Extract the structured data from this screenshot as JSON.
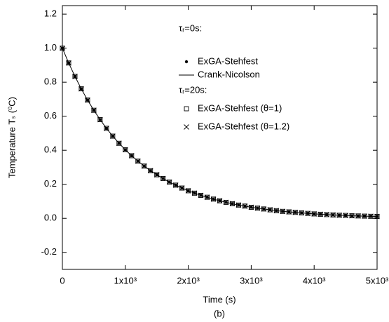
{
  "chart_data": {
    "type": "line",
    "x_label": "Time (s)",
    "y_label": "Temperature Tₛ (⁰C)",
    "caption": "(b)",
    "legend_titles": [
      "τᵣ=0s:",
      "τᵣ=20s:"
    ],
    "x": [
      0,
      100,
      200,
      300,
      400,
      500,
      600,
      700,
      800,
      900,
      1000,
      1100,
      1200,
      1300,
      1400,
      1500,
      1600,
      1700,
      1800,
      1900,
      2000,
      2100,
      2200,
      2300,
      2400,
      2500,
      2600,
      2700,
      2800,
      2900,
      3000,
      3100,
      3200,
      3300,
      3400,
      3500,
      3600,
      3700,
      3800,
      3900,
      4000,
      4100,
      4200,
      4300,
      4400,
      4500,
      4600,
      4700,
      4800,
      4900,
      5000
    ],
    "series": [
      {
        "name": "ExGA-Stehfest",
        "marker": "dot",
        "color": "#000000",
        "values": [
          1.0,
          0.913,
          0.834,
          0.761,
          0.695,
          0.635,
          0.58,
          0.529,
          0.483,
          0.441,
          0.403,
          0.368,
          0.336,
          0.307,
          0.28,
          0.256,
          0.234,
          0.213,
          0.195,
          0.178,
          0.162,
          0.148,
          0.135,
          0.124,
          0.113,
          0.103,
          0.094,
          0.086,
          0.078,
          0.072,
          0.065,
          0.06,
          0.055,
          0.05,
          0.045,
          0.041,
          0.038,
          0.035,
          0.032,
          0.029,
          0.026,
          0.024,
          0.022,
          0.02,
          0.018,
          0.017,
          0.015,
          0.014,
          0.013,
          0.012,
          0.011
        ]
      },
      {
        "name": "Crank-Nicolson",
        "marker": "line",
        "color": "#000000",
        "values": [
          1.0,
          0.913,
          0.834,
          0.761,
          0.695,
          0.635,
          0.58,
          0.529,
          0.483,
          0.441,
          0.403,
          0.368,
          0.336,
          0.307,
          0.28,
          0.256,
          0.234,
          0.213,
          0.195,
          0.178,
          0.162,
          0.148,
          0.135,
          0.124,
          0.113,
          0.103,
          0.094,
          0.086,
          0.078,
          0.072,
          0.065,
          0.06,
          0.055,
          0.05,
          0.045,
          0.041,
          0.038,
          0.035,
          0.032,
          0.029,
          0.026,
          0.024,
          0.022,
          0.02,
          0.018,
          0.017,
          0.015,
          0.014,
          0.013,
          0.012,
          0.011
        ]
      },
      {
        "name": "ExGA-Stehfest (θ=1)",
        "marker": "square",
        "color": "#000000",
        "values": [
          1.0,
          0.913,
          0.834,
          0.761,
          0.695,
          0.635,
          0.58,
          0.529,
          0.483,
          0.441,
          0.403,
          0.368,
          0.336,
          0.307,
          0.28,
          0.256,
          0.234,
          0.213,
          0.195,
          0.178,
          0.162,
          0.148,
          0.135,
          0.124,
          0.113,
          0.103,
          0.094,
          0.086,
          0.078,
          0.072,
          0.065,
          0.06,
          0.055,
          0.05,
          0.045,
          0.041,
          0.038,
          0.035,
          0.032,
          0.029,
          0.026,
          0.024,
          0.022,
          0.02,
          0.018,
          0.017,
          0.015,
          0.014,
          0.013,
          0.012,
          0.011
        ]
      },
      {
        "name": "ExGA-Stehfest (θ=1.2)",
        "marker": "cross",
        "color": "#000000",
        "values": [
          1.0,
          0.913,
          0.834,
          0.761,
          0.695,
          0.635,
          0.58,
          0.529,
          0.483,
          0.441,
          0.403,
          0.368,
          0.336,
          0.307,
          0.28,
          0.256,
          0.234,
          0.213,
          0.195,
          0.178,
          0.162,
          0.148,
          0.135,
          0.124,
          0.113,
          0.103,
          0.094,
          0.086,
          0.078,
          0.072,
          0.065,
          0.06,
          0.055,
          0.05,
          0.045,
          0.041,
          0.038,
          0.035,
          0.032,
          0.029,
          0.026,
          0.024,
          0.022,
          0.02,
          0.018,
          0.017,
          0.015,
          0.014,
          0.013,
          0.012,
          0.011
        ]
      }
    ],
    "xlim": [
      0,
      5000
    ],
    "xticks": [
      0,
      {
        "value": 1000,
        "label": "1x10³"
      },
      {
        "value": 2000,
        "label": "2x10³"
      },
      {
        "value": 3000,
        "label": "3x10³"
      },
      {
        "value": 4000,
        "label": "4x10³"
      },
      {
        "value": 5000,
        "label": "5x10³"
      }
    ],
    "ylim": [
      -0.3,
      1.25
    ],
    "yticks": [
      -0.2,
      {
        "value": 0,
        "label": "0.0"
      },
      0.2,
      0.4,
      0.6,
      0.8,
      {
        "value": 1,
        "label": "1.0"
      },
      1.2
    ],
    "grid": false
  }
}
